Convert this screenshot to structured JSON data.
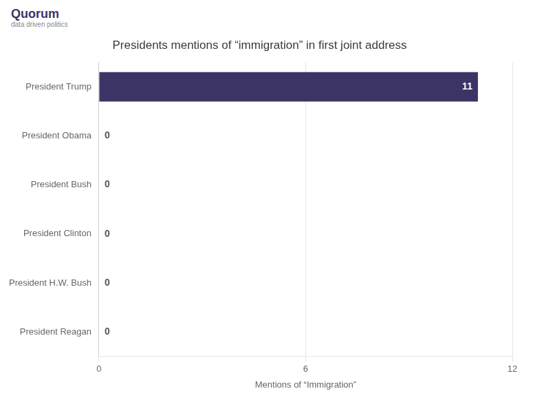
{
  "chart_data": {
    "type": "bar",
    "orientation": "horizontal",
    "title": "Presidents mentions of “immigration” in first joint address",
    "annotations": [
      "Quorum",
      "data driven politics"
    ],
    "categories": [
      "President Trump",
      "President Obama",
      "President Bush",
      "President Clinton",
      "President H.W. Bush",
      "President Reagan"
    ],
    "values": [
      11,
      0,
      0,
      0,
      0,
      0
    ],
    "color": "#3d3466",
    "xlabel": "Mentions of “Immigration”",
    "xlim": [
      0,
      12
    ],
    "xticks": [
      0,
      6,
      12
    ],
    "grid": true,
    "data_labels": true
  }
}
